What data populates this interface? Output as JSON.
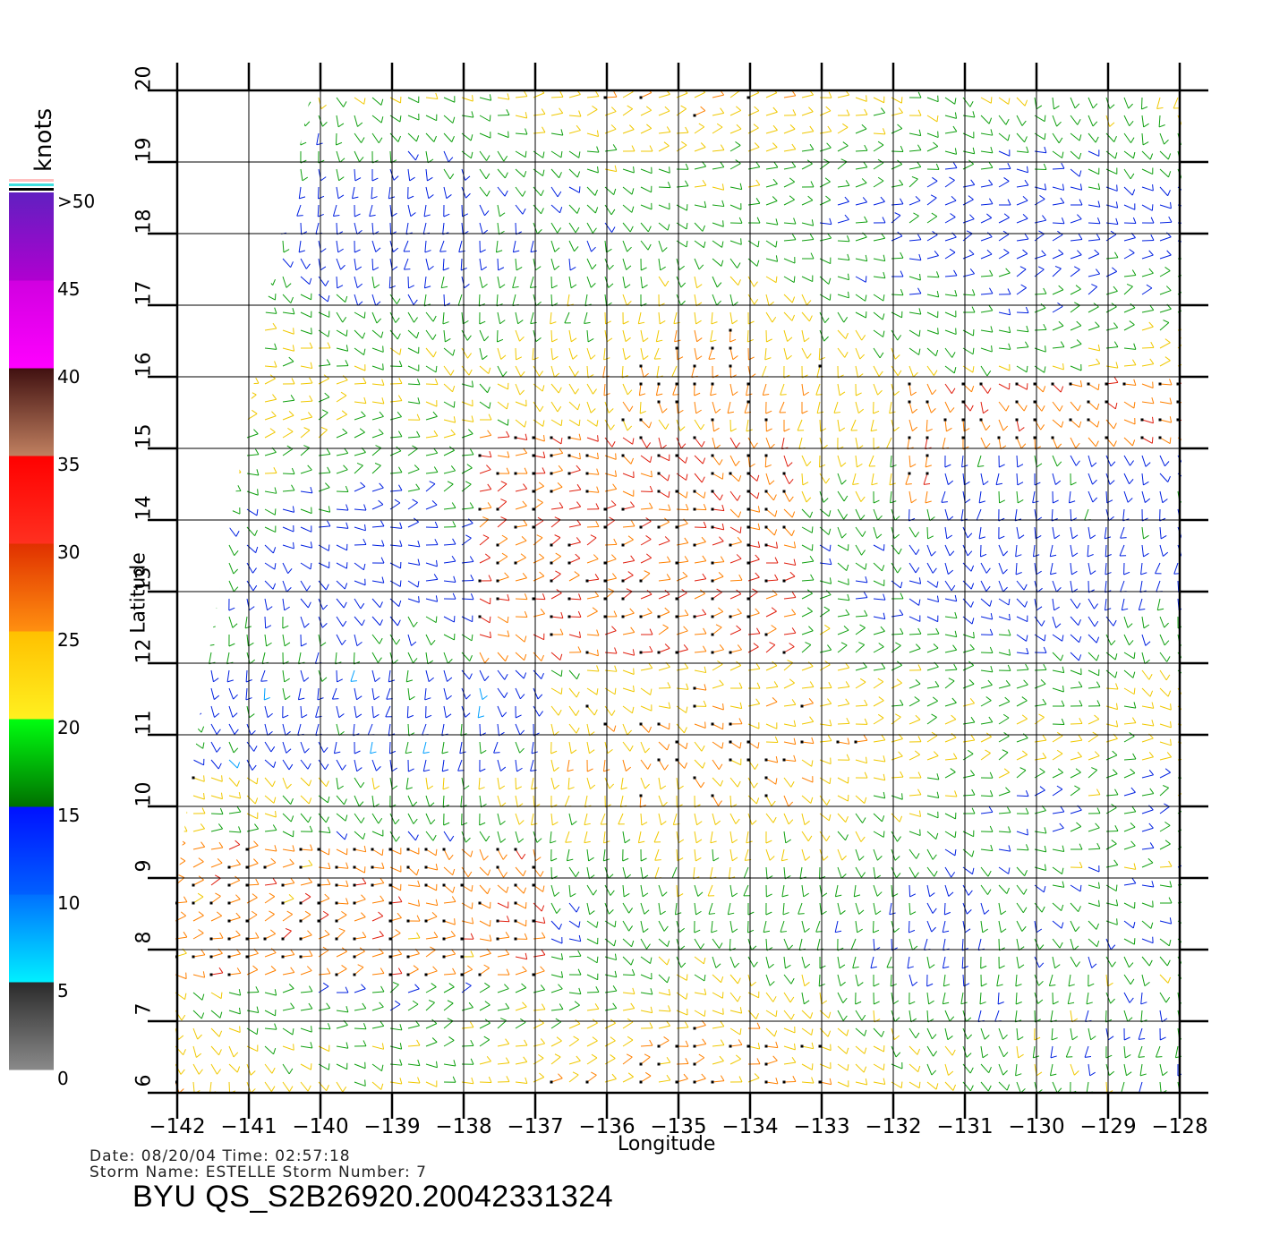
{
  "map": {
    "lon_range": [
      -142,
      -128
    ],
    "lat_range": [
      6,
      20
    ],
    "lon_ticks": [
      "−142",
      "−141",
      "−140",
      "−139",
      "−138",
      "−137",
      "−136",
      "−135",
      "−134",
      "−133",
      "−132",
      "−131",
      "−130",
      "−129",
      "−128"
    ],
    "lat_ticks": [
      "6",
      "7",
      "8",
      "9",
      "10",
      "11",
      "12",
      "13",
      "14",
      "15",
      "16",
      "17",
      "18",
      "19",
      "20"
    ],
    "x_axis_label": "Longitude",
    "y_axis_label": "Latitude",
    "grid": true,
    "layer": "scatterometer wind barbs, colored by speed; black dots mark rain-flagged cells"
  },
  "colorbar": {
    "unit": "knots",
    "labels": [
      ">50",
      "45",
      "40",
      "35",
      "30",
      "25",
      "20",
      "15",
      "10",
      "5",
      "0"
    ],
    "bands": [
      {
        "range": "0-5",
        "colors": [
          "#8a8a8a",
          "#2a2a2a"
        ]
      },
      {
        "range": "5-10",
        "colors": [
          "#00f0ff",
          "#0070ff"
        ]
      },
      {
        "range": "10-15",
        "colors": [
          "#0060ff",
          "#0010ff"
        ]
      },
      {
        "range": "15-20",
        "colors": [
          "#007000",
          "#00ff10"
        ]
      },
      {
        "range": "20-25",
        "colors": [
          "#fff020",
          "#ffc000"
        ]
      },
      {
        "range": "25-30",
        "colors": [
          "#ff9010",
          "#e03000"
        ]
      },
      {
        "range": "30-35",
        "colors": [
          "#ff3020",
          "#ff0000"
        ]
      },
      {
        "range": "35-40",
        "colors": [
          "#c08060",
          "#401010"
        ]
      },
      {
        "range": "40-45",
        "colors": [
          "#ff00ff",
          "#d000e0"
        ]
      },
      {
        "range": "45-50",
        "colors": [
          "#b000d0",
          "#6020c0"
        ]
      }
    ]
  },
  "meta": {
    "line1": "Date: 08/20/04   Time: 02:57:18",
    "line2": "Storm Name: ESTELLE   Storm Number: 7"
  },
  "product": "BYU QS_S2B26920.20042331324"
}
